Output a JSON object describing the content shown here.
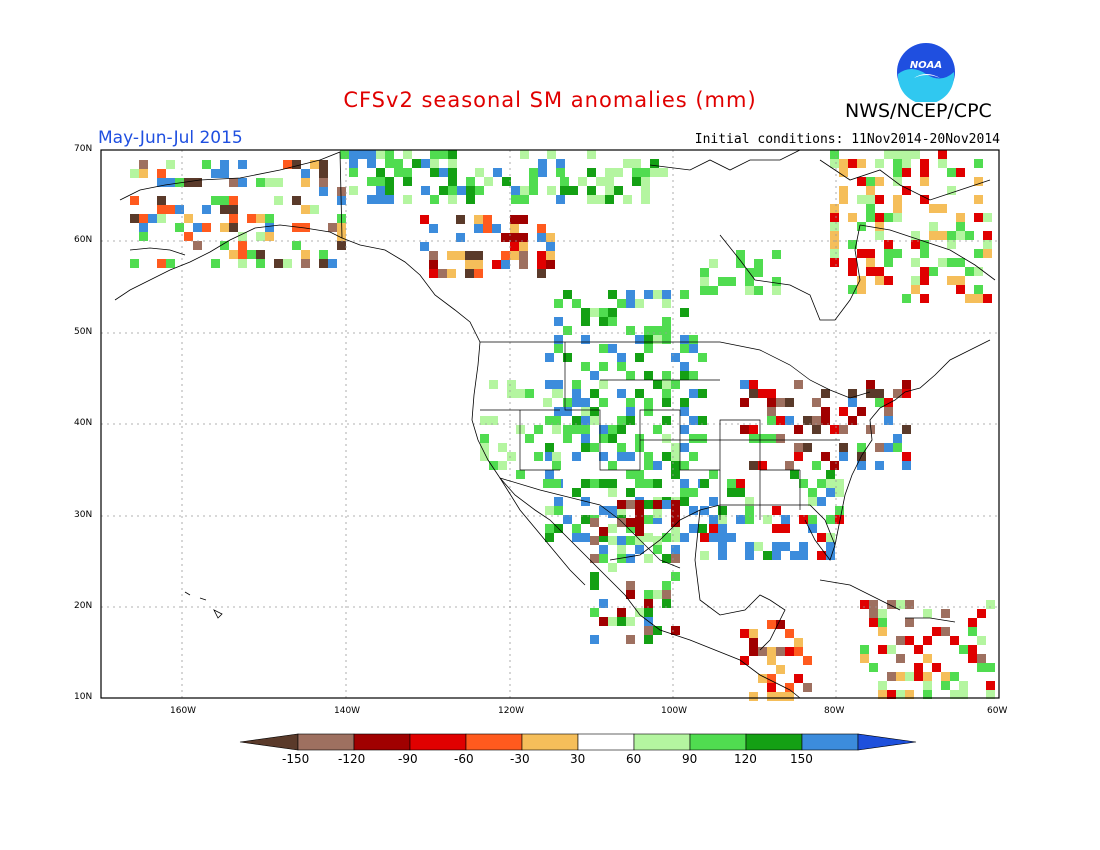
{
  "title": "CFSv2 seasonal SM anomalies (mm)",
  "organization": "NWS/NCEP/CPC",
  "logo_text": "NOAA",
  "period": "May-Jun-Jul 2015",
  "initial_conditions": "Initial conditions: 11Nov2014-20Nov2014",
  "lat_labels": [
    "70N",
    "60N",
    "50N",
    "40N",
    "30N",
    "20N",
    "10N"
  ],
  "lon_labels": [
    "160W",
    "140W",
    "120W",
    "100W",
    "80W",
    "60W"
  ],
  "colorbar": {
    "levels": [
      "-150",
      "-120",
      "-90",
      "-60",
      "-30",
      "30",
      "60",
      "90",
      "120",
      "150"
    ],
    "colors": [
      "#5a3a2a",
      "#9e7060",
      "#a00000",
      "#e00000",
      "#ff5a1e",
      "#f5be5a",
      "#ffffff",
      "#b4f5a0",
      "#50dc50",
      "#14a014",
      "#3c8cdc",
      "#1e50dc"
    ]
  }
}
